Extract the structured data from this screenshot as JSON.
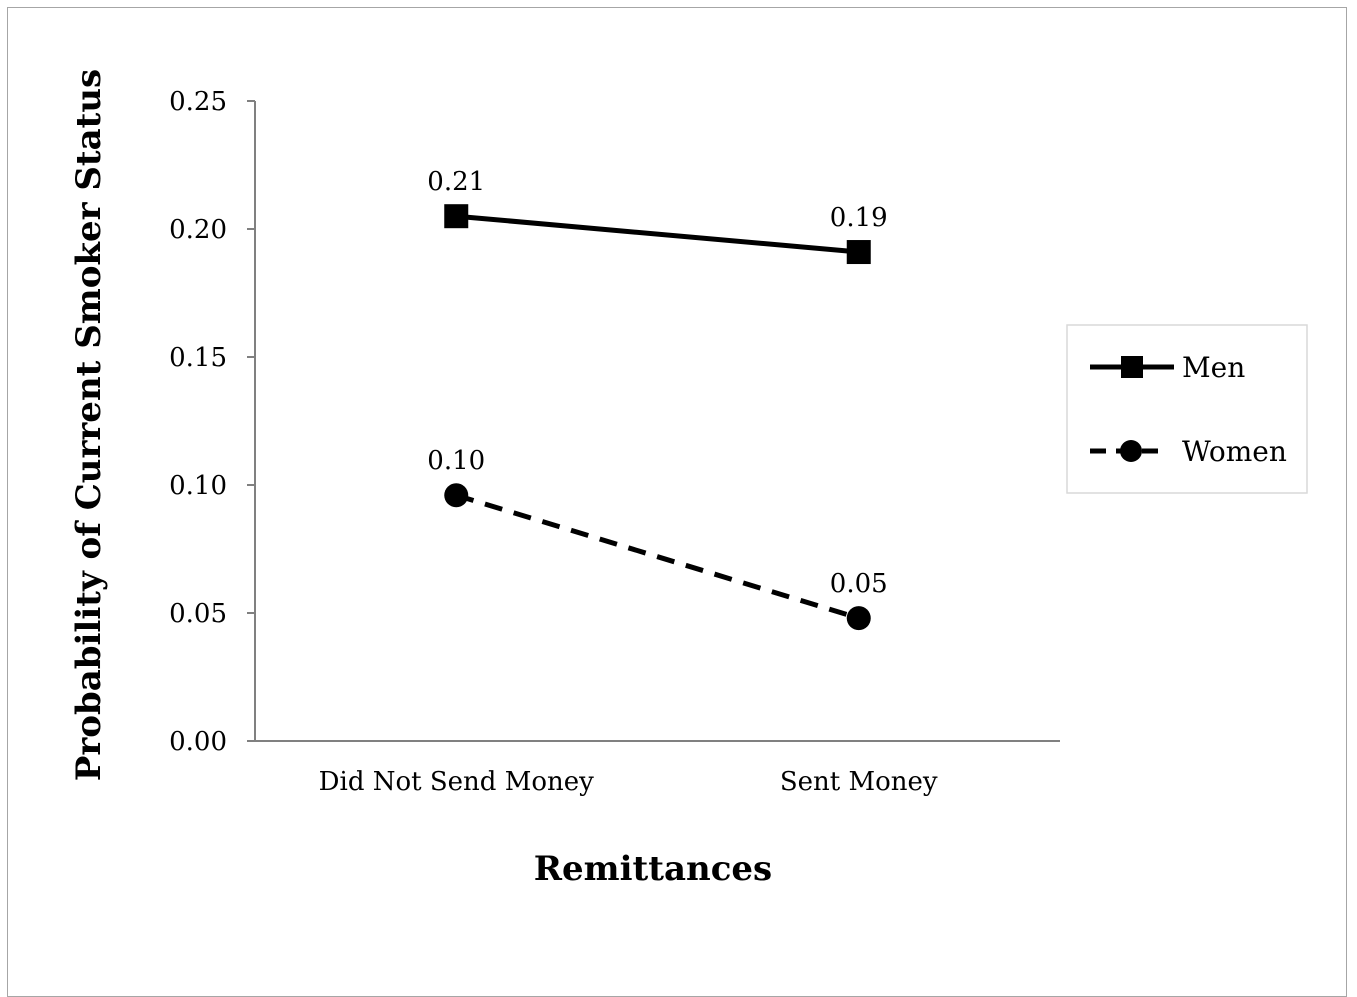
{
  "chart_data": {
    "type": "line",
    "title": "",
    "xlabel": "Remittances",
    "ylabel": "Probability of Current Smoker Status",
    "categories": [
      "Did Not Send Money",
      "Sent Money"
    ],
    "ylim": [
      0,
      0.25
    ],
    "yticks": [
      "0.00",
      "0.05",
      "0.10",
      "0.15",
      "0.20",
      "0.25"
    ],
    "grid": false,
    "legend_position": "right",
    "series": [
      {
        "name": "Men",
        "values": [
          0.205,
          0.191
        ],
        "labels": [
          "0.21",
          "0.19"
        ],
        "marker": "square",
        "line_style": "solid",
        "color": "#000000"
      },
      {
        "name": "Women",
        "values": [
          0.096,
          0.048
        ],
        "labels": [
          "0.10",
          "0.05"
        ],
        "marker": "circle",
        "line_style": "dashed",
        "color": "#000000"
      }
    ]
  }
}
